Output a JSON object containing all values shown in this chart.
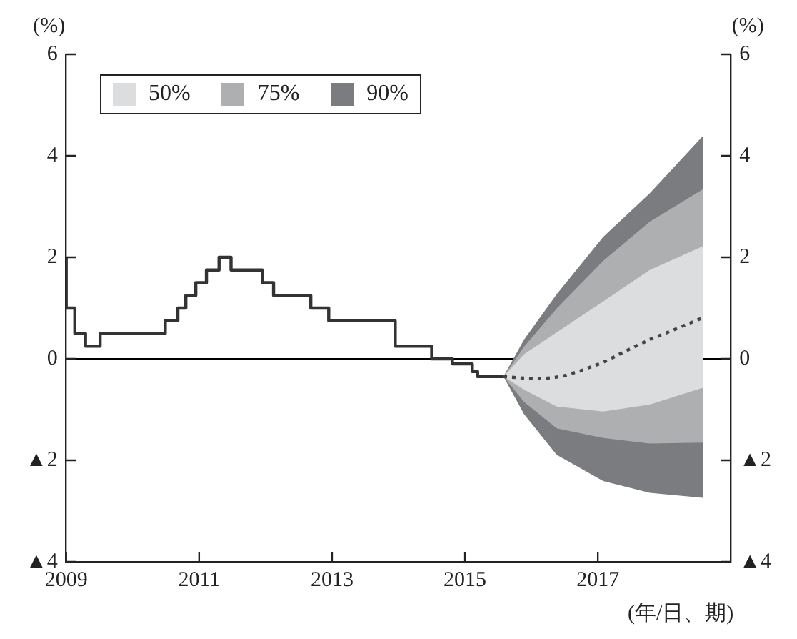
{
  "chart_data": {
    "type": "line",
    "xlabel": "(年/日、期)",
    "ylabel": "(%)",
    "y2label": "(%)",
    "xlim": [
      2009,
      2019
    ],
    "xticks": [
      2009,
      2011,
      2013,
      2015,
      2017
    ],
    "ylim": [
      -4,
      6
    ],
    "yticks": [
      {
        "value": -4,
        "label": "▲4"
      },
      {
        "value": -2,
        "label": "▲2"
      },
      0,
      2,
      4,
      6
    ],
    "y2lim": [
      -4,
      6
    ],
    "y2ticks": [
      {
        "value": -4,
        "label": "▲4"
      },
      {
        "value": -2,
        "label": "▲2"
      },
      0,
      2,
      4,
      6
    ],
    "grid": false,
    "legend": "top left",
    "ref_lines": [
      {
        "axis": "y",
        "value": 0,
        "color": "#000000"
      }
    ],
    "series": [
      {
        "type": "step",
        "color": "#333333",
        "x": [
          2009,
          2009.13,
          2009.29,
          2009.51,
          2010.49,
          2010.68,
          2010.8,
          2010.95,
          2011.11,
          2011.3,
          2011.48,
          2011.95,
          2012.12,
          2012.68,
          2012.95,
          2013.95,
          2014.5,
          2014.81,
          2015.11,
          2015.19,
          2015.49,
          2015.58
        ],
        "values": [
          2,
          1,
          0.5,
          0.25,
          0.5,
          0.75,
          1,
          1.25,
          1.5,
          1.75,
          2,
          1.75,
          1.5,
          1.25,
          1,
          0.75,
          0.25,
          0,
          -0.1,
          -0.25,
          -0.35,
          -0.35
        ]
      },
      {
        "type": "line",
        "color": "#444444",
        "line_style": "dotted",
        "x": [
          2015.58,
          2015.89,
          2016.17,
          2016.45,
          2016.73,
          2017.08,
          2017.43,
          2017.78,
          2018.12,
          2018.58
        ],
        "values": [
          -0.35,
          -0.38,
          -0.39,
          -0.35,
          -0.24,
          -0.07,
          0.16,
          0.38,
          0.56,
          0.81
        ]
      },
      {
        "type": "line",
        "name": "50%",
        "color": "#dcdddf",
        "values": [
          null,
          null,
          null,
          null,
          null,
          null
        ],
        "x": [
          2015.58,
          2015.89,
          2016.38,
          2017.08,
          2017.78,
          2018.58
        ],
        "lower": [
          -0.35,
          -0.61,
          -0.94,
          -1.04,
          -0.9,
          -0.57
        ],
        "upper": [
          -0.35,
          0.09,
          0.52,
          1.13,
          1.75,
          2.22
        ]
      },
      {
        "type": "line",
        "name": "75%",
        "color": "#aeafb1",
        "values": [
          null,
          null,
          null,
          null,
          null,
          null
        ],
        "x": [
          2015.58,
          2015.89,
          2016.38,
          2017.08,
          2017.78,
          2018.58
        ],
        "lower": [
          -0.35,
          -0.85,
          -1.37,
          -1.56,
          -1.67,
          -1.65
        ],
        "upper": [
          -0.35,
          0.24,
          0.99,
          1.93,
          2.7,
          3.34
        ]
      },
      {
        "type": "line",
        "name": "90%",
        "color": "#7b7c7f",
        "values": [
          null,
          null,
          null,
          null,
          null,
          null
        ],
        "x": [
          2015.58,
          2015.89,
          2016.38,
          2017.08,
          2017.78,
          2018.58
        ],
        "lower": [
          -0.35,
          -1.09,
          -1.89,
          -2.41,
          -2.64,
          -2.74
        ],
        "upper": [
          -0.35,
          0.38,
          1.27,
          2.4,
          3.26,
          4.39
        ]
      }
    ]
  }
}
